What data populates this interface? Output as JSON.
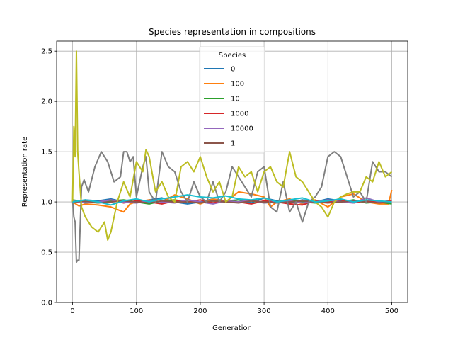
{
  "chart_data": {
    "type": "line",
    "title": "Species representation in compositions",
    "xlabel": "Generation",
    "ylabel": "Representation rate",
    "xlim": [
      -25,
      525
    ],
    "ylim": [
      0.0,
      2.6
    ],
    "xticks": [
      0,
      100,
      200,
      300,
      400,
      500
    ],
    "yticks": [
      0.0,
      0.5,
      1.0,
      1.5,
      2.0,
      2.5
    ],
    "xtick_labels": [
      "0",
      "100",
      "200",
      "300",
      "400",
      "500"
    ],
    "ytick_labels": [
      "0.0",
      "0.5",
      "1.0",
      "1.5",
      "2.0",
      "2.5"
    ],
    "grid": true,
    "legend": {
      "title": "Species",
      "placement": "top-center"
    },
    "series": [
      {
        "name": "0",
        "color": "#1f77b4",
        "x": [
          0,
          20,
          40,
          60,
          80,
          100,
          120,
          140,
          160,
          180,
          200,
          220,
          240,
          260,
          280,
          300,
          320,
          340,
          360,
          380,
          400,
          420,
          440,
          460,
          480,
          500
        ],
        "y": [
          1.0,
          1.02,
          1.01,
          1.03,
          1.0,
          0.99,
          1.02,
          1.04,
          1.0,
          0.98,
          1.0,
          1.03,
          1.01,
          1.02,
          0.99,
          1.04,
          1.01,
          0.99,
          1.02,
          1.0,
          1.03,
          1.01,
          0.99,
          1.02,
          1.0,
          1.01
        ]
      },
      {
        "name": "100",
        "color": "#ff7f0e",
        "x": [
          0,
          10,
          20,
          40,
          60,
          80,
          90,
          100,
          120,
          140,
          160,
          180,
          200,
          220,
          240,
          260,
          280,
          300,
          310,
          320,
          340,
          360,
          380,
          400,
          420,
          440,
          460,
          480,
          495,
          500
        ],
        "y": [
          1.0,
          0.96,
          0.98,
          0.97,
          0.95,
          0.9,
          0.98,
          1.0,
          1.02,
          1.0,
          1.07,
          1.03,
          0.98,
          1.03,
          1.0,
          1.1,
          1.08,
          1.05,
          0.95,
          1.0,
          1.03,
          0.98,
          1.02,
          0.95,
          1.05,
          1.08,
          1.0,
          0.98,
          0.98,
          1.12
        ]
      },
      {
        "name": "10",
        "color": "#2ca02c",
        "x": [
          0,
          20,
          40,
          60,
          80,
          100,
          120,
          140,
          160,
          180,
          200,
          220,
          240,
          260,
          280,
          300,
          320,
          340,
          360,
          380,
          400,
          420,
          440,
          460,
          480,
          500
        ],
        "y": [
          1.02,
          1.0,
          0.99,
          1.01,
          1.02,
          1.0,
          0.98,
          1.01,
          1.02,
          1.0,
          0.99,
          1.01,
          1.0,
          1.02,
          1.01,
          0.99,
          1.0,
          1.02,
          1.0,
          0.99,
          1.01,
          1.0,
          1.02,
          0.99,
          1.0,
          0.98
        ]
      },
      {
        "name": "1000",
        "color": "#d62728",
        "x": [
          0,
          20,
          40,
          60,
          80,
          100,
          120,
          140,
          160,
          180,
          200,
          220,
          240,
          260,
          280,
          300,
          320,
          340,
          360,
          380,
          400,
          420,
          440,
          460,
          480,
          500
        ],
        "y": [
          0.99,
          1.01,
          1.0,
          1.02,
          0.99,
          1.01,
          1.0,
          0.98,
          1.01,
          1.0,
          1.02,
          0.99,
          1.01,
          1.0,
          0.98,
          1.01,
          1.0,
          0.98,
          0.97,
          1.01,
          1.0,
          1.02,
          0.99,
          1.01,
          1.0,
          1.01
        ]
      },
      {
        "name": "10000",
        "color": "#9467bd",
        "x": [
          0,
          20,
          40,
          60,
          80,
          100,
          120,
          140,
          160,
          180,
          200,
          220,
          240,
          260,
          280,
          300,
          320,
          340,
          360,
          380,
          400,
          420,
          440,
          460,
          480,
          500
        ],
        "y": [
          1.01,
          0.99,
          1.0,
          1.02,
          1.0,
          0.99,
          1.01,
          1.0,
          0.99,
          1.02,
          1.0,
          0.98,
          1.01,
          1.0,
          1.02,
          0.99,
          1.0,
          1.01,
          0.99,
          1.0,
          1.02,
          1.0,
          0.99,
          1.04,
          1.0,
          1.0
        ]
      },
      {
        "name": "1",
        "color": "#8c564b",
        "x": [
          0,
          20,
          40,
          60,
          80,
          100,
          120,
          140,
          160,
          180,
          200,
          220,
          240,
          260,
          280,
          300,
          320,
          340,
          360,
          380,
          400,
          420,
          440,
          460,
          480,
          500
        ],
        "y": [
          1.0,
          1.01,
          0.99,
          1.0,
          1.01,
          1.0,
          0.99,
          1.01,
          1.0,
          1.0,
          0.99,
          1.01,
          1.0,
          0.99,
          1.01,
          1.0,
          0.99,
          1.0,
          1.01,
          1.0,
          0.99,
          1.0,
          1.01,
          1.0,
          0.99,
          1.0
        ]
      },
      {
        "color": "#7f7f7f",
        "x": [
          0,
          2,
          4,
          6,
          8,
          10,
          14,
          18,
          25,
          35,
          45,
          55,
          65,
          75,
          80,
          85,
          90,
          95,
          100,
          110,
          115,
          120,
          130,
          140,
          150,
          160,
          170,
          180,
          190,
          200,
          210,
          220,
          230,
          240,
          250,
          260,
          270,
          280,
          290,
          300,
          310,
          320,
          330,
          340,
          350,
          360,
          370,
          380,
          390,
          400,
          410,
          420,
          430,
          440,
          450,
          460,
          470,
          480,
          490,
          500
        ],
        "y": [
          1.02,
          0.85,
          0.8,
          0.4,
          0.42,
          0.42,
          1.15,
          1.22,
          1.1,
          1.35,
          1.5,
          1.4,
          1.2,
          1.25,
          1.5,
          1.5,
          1.4,
          1.45,
          1.05,
          1.35,
          1.45,
          1.1,
          1.0,
          1.5,
          1.35,
          1.3,
          1.1,
          1.0,
          1.2,
          1.05,
          1.0,
          1.2,
          1.0,
          1.1,
          1.35,
          1.25,
          1.15,
          1.05,
          1.3,
          1.35,
          0.95,
          0.9,
          1.2,
          0.9,
          1.0,
          0.8,
          1.0,
          1.05,
          1.15,
          1.45,
          1.5,
          1.45,
          1.25,
          1.05,
          1.1,
          1.0,
          1.4,
          1.3,
          1.3,
          1.25
        ]
      },
      {
        "color": "#bcbd22",
        "x": [
          0,
          2,
          4,
          6,
          8,
          10,
          14,
          20,
          30,
          40,
          50,
          55,
          60,
          70,
          80,
          90,
          100,
          110,
          115,
          120,
          130,
          140,
          150,
          160,
          170,
          180,
          190,
          200,
          210,
          220,
          230,
          240,
          250,
          260,
          270,
          280,
          290,
          300,
          310,
          320,
          330,
          340,
          350,
          360,
          370,
          380,
          390,
          400,
          410,
          420,
          430,
          440,
          450,
          460,
          470,
          480,
          490,
          500
        ],
        "y": [
          1.0,
          1.75,
          1.45,
          2.5,
          1.5,
          1.3,
          0.95,
          0.85,
          0.75,
          0.7,
          0.8,
          0.62,
          0.7,
          1.0,
          1.2,
          1.05,
          1.4,
          1.3,
          1.52,
          1.45,
          1.1,
          1.2,
          1.05,
          1.0,
          1.35,
          1.4,
          1.3,
          1.45,
          1.25,
          1.1,
          1.2,
          1.0,
          1.05,
          1.35,
          1.25,
          1.3,
          1.1,
          1.3,
          1.35,
          1.2,
          1.15,
          1.5,
          1.25,
          1.2,
          1.1,
          1.0,
          0.95,
          0.85,
          1.0,
          1.05,
          1.08,
          1.1,
          1.1,
          1.25,
          1.2,
          1.4,
          1.25,
          1.3
        ]
      },
      {
        "color": "#17becf",
        "x": [
          0,
          20,
          40,
          60,
          80,
          100,
          120,
          140,
          160,
          180,
          200,
          220,
          240,
          260,
          280,
          300,
          320,
          340,
          360,
          380,
          400,
          420,
          440,
          460,
          480,
          500
        ],
        "y": [
          1.0,
          1.02,
          1.0,
          0.97,
          1.01,
          1.03,
          1.0,
          1.03,
          1.05,
          1.07,
          1.05,
          1.04,
          1.06,
          1.03,
          1.02,
          1.04,
          1.0,
          1.02,
          1.04,
          1.0,
          1.01,
          1.03,
          1.0,
          1.02,
          1.01,
          1.0
        ]
      }
    ]
  }
}
